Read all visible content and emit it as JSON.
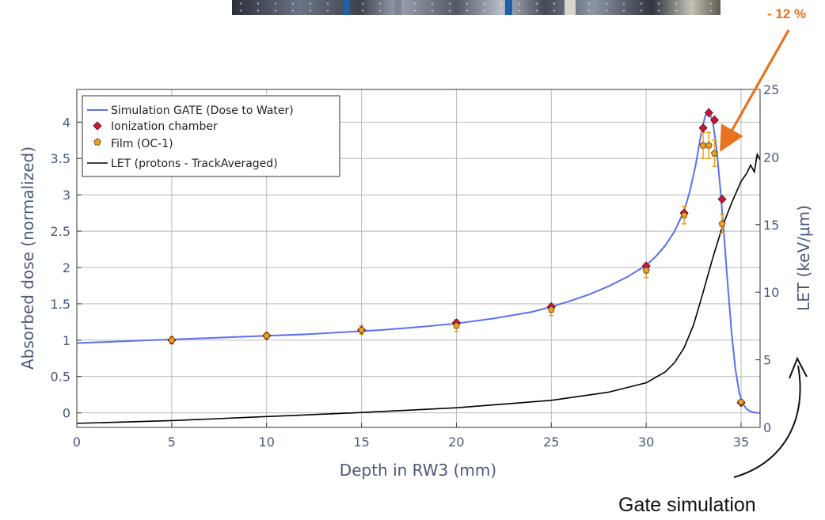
{
  "annotation_text": "- 12 %",
  "gate_caption": "Gate simulation",
  "colors": {
    "simulation": "#5b6ff0",
    "ion_chamber_fill": "#c8193c",
    "ion_chamber_edge": "#5a0018",
    "film_fill": "#f0a020",
    "film_edge": "#5a3a00",
    "error_bar": "#f0a020",
    "let": "#000000",
    "annotation": "#e8731e",
    "axis_text": "#4a5a7a"
  },
  "photo_strip": "laboratory photo (cropped)",
  "chart_data": {
    "type": "line",
    "xlabel": "Depth in RW3 (mm)",
    "ylabel": "Absorbed dose (normalized)",
    "y2label": "LET (keV/μm)",
    "xlim": [
      0,
      36
    ],
    "ylim": [
      -0.2,
      4.45
    ],
    "y2lim": [
      0,
      25
    ],
    "x_ticks": [
      0,
      5,
      10,
      15,
      20,
      25,
      30,
      35
    ],
    "y_ticks": [
      0,
      0.5,
      1,
      1.5,
      2,
      2.5,
      3,
      3.5,
      4
    ],
    "y2_ticks": [
      0,
      5,
      10,
      15,
      20,
      25
    ],
    "x_tick_labels": [
      "0",
      "5",
      "10",
      "15",
      "20",
      "25",
      "30",
      "35"
    ],
    "y_tick_labels": [
      "0",
      "0.5",
      "1",
      "1.5",
      "2",
      "2.5",
      "3",
      "3.5",
      "4"
    ],
    "y2_tick_labels": [
      "0",
      "5",
      "10",
      "15",
      "20",
      "25"
    ],
    "grid": true,
    "legend_position": "top-left",
    "series": [
      {
        "name": "Simulation GATE (Dose to Water)",
        "kind": "line",
        "x": [
          0,
          2,
          4,
          6,
          8,
          10,
          12,
          14,
          16,
          18,
          20,
          22,
          24,
          25,
          26,
          27,
          28,
          29,
          30,
          30.5,
          31,
          31.5,
          32,
          32.3,
          32.6,
          32.9,
          33.1,
          33.3,
          33.5,
          33.7,
          33.9,
          34.1,
          34.3,
          34.5,
          34.7,
          34.9,
          35.1,
          35.3,
          35.5,
          35.8,
          36
        ],
        "y": [
          0.96,
          0.98,
          1.0,
          1.02,
          1.04,
          1.06,
          1.08,
          1.11,
          1.14,
          1.18,
          1.23,
          1.3,
          1.39,
          1.46,
          1.54,
          1.63,
          1.74,
          1.87,
          2.03,
          2.15,
          2.3,
          2.5,
          2.78,
          3.05,
          3.4,
          3.85,
          4.08,
          4.15,
          4.02,
          3.65,
          3.1,
          2.45,
          1.75,
          1.1,
          0.6,
          0.28,
          0.12,
          0.05,
          0.02,
          0.0,
          0.0
        ]
      },
      {
        "name": "Ionization chamber",
        "kind": "points",
        "x": [
          5,
          10,
          15,
          20,
          25,
          30,
          32,
          33,
          33.3,
          33.6,
          34,
          35
        ],
        "y": [
          1.0,
          1.06,
          1.14,
          1.24,
          1.46,
          2.02,
          2.75,
          3.92,
          4.13,
          4.03,
          2.94,
          0.14
        ],
        "err": [
          0.02,
          0.02,
          0.02,
          0.02,
          0.02,
          0.03,
          0.05,
          0.06,
          0.07,
          0.06,
          0.05,
          0.02
        ]
      },
      {
        "name": "Film (OC-1)",
        "kind": "points",
        "x": [
          5,
          10,
          15,
          20,
          25,
          30,
          32,
          33,
          33.3,
          33.6,
          34,
          35
        ],
        "y": [
          1.0,
          1.06,
          1.14,
          1.2,
          1.42,
          1.96,
          2.72,
          3.68,
          3.68,
          3.57,
          2.6,
          0.15
        ],
        "err": [
          0.05,
          0.04,
          0.06,
          0.08,
          0.08,
          0.1,
          0.12,
          0.18,
          0.18,
          0.18,
          0.13,
          0.03
        ]
      },
      {
        "name": "LET (protons - TrackAveraged)",
        "kind": "line",
        "axis": "right",
        "x": [
          0,
          5,
          10,
          15,
          20,
          25,
          28,
          30,
          31,
          31.5,
          32,
          32.5,
          33,
          33.5,
          34,
          34.5,
          35,
          35.3,
          35.5,
          35.7,
          35.85,
          36
        ],
        "y": [
          0.3,
          0.5,
          0.8,
          1.1,
          1.45,
          2.0,
          2.6,
          3.3,
          4.1,
          4.8,
          5.9,
          7.6,
          10.0,
          12.5,
          14.8,
          16.6,
          18.2,
          18.8,
          19.4,
          18.9,
          20.2,
          19.8
        ]
      }
    ]
  }
}
